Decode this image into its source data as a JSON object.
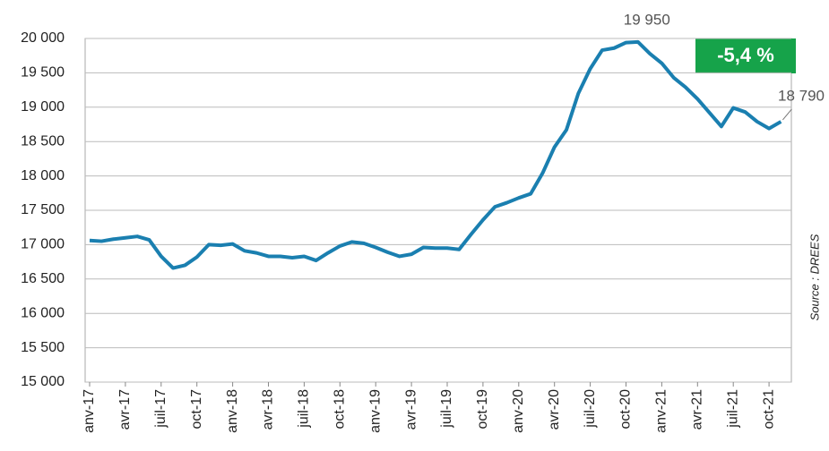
{
  "chart_data": {
    "type": "line",
    "categories": [
      "anv-17",
      null,
      null,
      "avr-17",
      null,
      null,
      "juil-17",
      null,
      null,
      "oct-17",
      null,
      null,
      "anv-18",
      null,
      null,
      "avr-18",
      null,
      null,
      "juil-18",
      null,
      null,
      "oct-18",
      null,
      null,
      "anv-19",
      null,
      null,
      "avr-19",
      null,
      null,
      "juil-19",
      null,
      null,
      "oct-19",
      null,
      null,
      "anv-20",
      null,
      null,
      "avr-20",
      null,
      null,
      "juil-20",
      null,
      null,
      "oct-20",
      null,
      null,
      "anv-21",
      null,
      null,
      "avr-21",
      null,
      null,
      "juil-21",
      null,
      null,
      "oct-21",
      null
    ],
    "series": [
      {
        "color": "#1a7fb0",
        "values": [
          17060,
          17050,
          17080,
          17100,
          17120,
          17070,
          16830,
          16660,
          16700,
          16820,
          17000,
          16990,
          17010,
          16910,
          16880,
          16830,
          16830,
          16810,
          16830,
          16770,
          16880,
          16980,
          17040,
          17020,
          16960,
          16890,
          16830,
          16860,
          16960,
          16950,
          16950,
          16930,
          17150,
          17360,
          17550,
          17610,
          17680,
          17740,
          18040,
          18420,
          18670,
          19200,
          19560,
          19830,
          19860,
          19940,
          19950,
          19780,
          19640,
          19430,
          19290,
          19120,
          18920,
          18720,
          18990,
          18930,
          18790,
          18690,
          18790
        ]
      }
    ],
    "ylim": [
      15000,
      20000
    ],
    "yticks": [
      {
        "value": 15000,
        "label": "15 000"
      },
      {
        "value": 15500,
        "label": "15 500"
      },
      {
        "value": 16000,
        "label": "16 000"
      },
      {
        "value": 16500,
        "label": "16 500"
      },
      {
        "value": 17000,
        "label": "17 000"
      },
      {
        "value": 17500,
        "label": "17 500"
      },
      {
        "value": 18000,
        "label": "18 000"
      },
      {
        "value": 18500,
        "label": "18 500"
      },
      {
        "value": 19000,
        "label": "19 000"
      },
      {
        "value": 19500,
        "label": "19 500"
      },
      {
        "value": 20000,
        "label": "20 000"
      }
    ],
    "grid": true,
    "max_label": "19 950",
    "last_label": "18 790",
    "change_label": "-5,4 %",
    "source": "Source : DREES"
  }
}
